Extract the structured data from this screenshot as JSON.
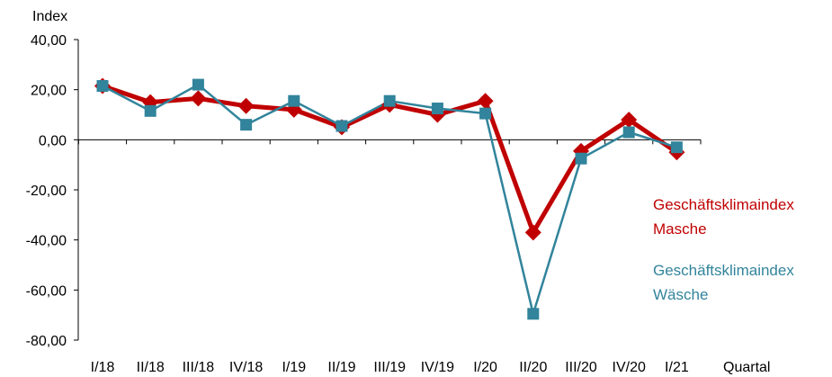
{
  "chart_data": {
    "type": "line",
    "ylabel": "Index",
    "xlabel": "Quartal",
    "categories": [
      "I/18",
      "II/18",
      "III/18",
      "IV/18",
      "I/19",
      "II/19",
      "III/19",
      "IV/19",
      "I/20",
      "II/20",
      "III/20",
      "IV/20",
      "I/21"
    ],
    "ylim": [
      -80,
      40
    ],
    "yticks": [
      "40,00",
      "20,00",
      "0,00",
      "-20,00",
      "-40,00",
      "-60,00",
      "-80,00"
    ],
    "ytick_values": [
      40,
      20,
      0,
      -20,
      -40,
      -60,
      -80
    ],
    "grid": false,
    "legend_placement": "right",
    "series": [
      {
        "name": "Geschäftsklimaindex Masche",
        "legend_line1": "Geschäftsklimaindex",
        "legend_line2": "Masche",
        "color": "#c00000",
        "marker": "diamond",
        "values": [
          21.5,
          15,
          16.5,
          13.5,
          12,
          5,
          14,
          10,
          15.5,
          -37,
          -4.5,
          8,
          -5
        ]
      },
      {
        "name": "Geschäftsklimaindex Wäsche",
        "legend_line1": "Geschäftsklimaindex",
        "legend_line2": "Wäsche",
        "color": "#31849b",
        "marker": "square",
        "values": [
          21.5,
          11.5,
          22,
          6,
          15.5,
          5.5,
          15.5,
          12.5,
          10.5,
          -69.5,
          -7.5,
          3,
          -3
        ]
      }
    ]
  }
}
